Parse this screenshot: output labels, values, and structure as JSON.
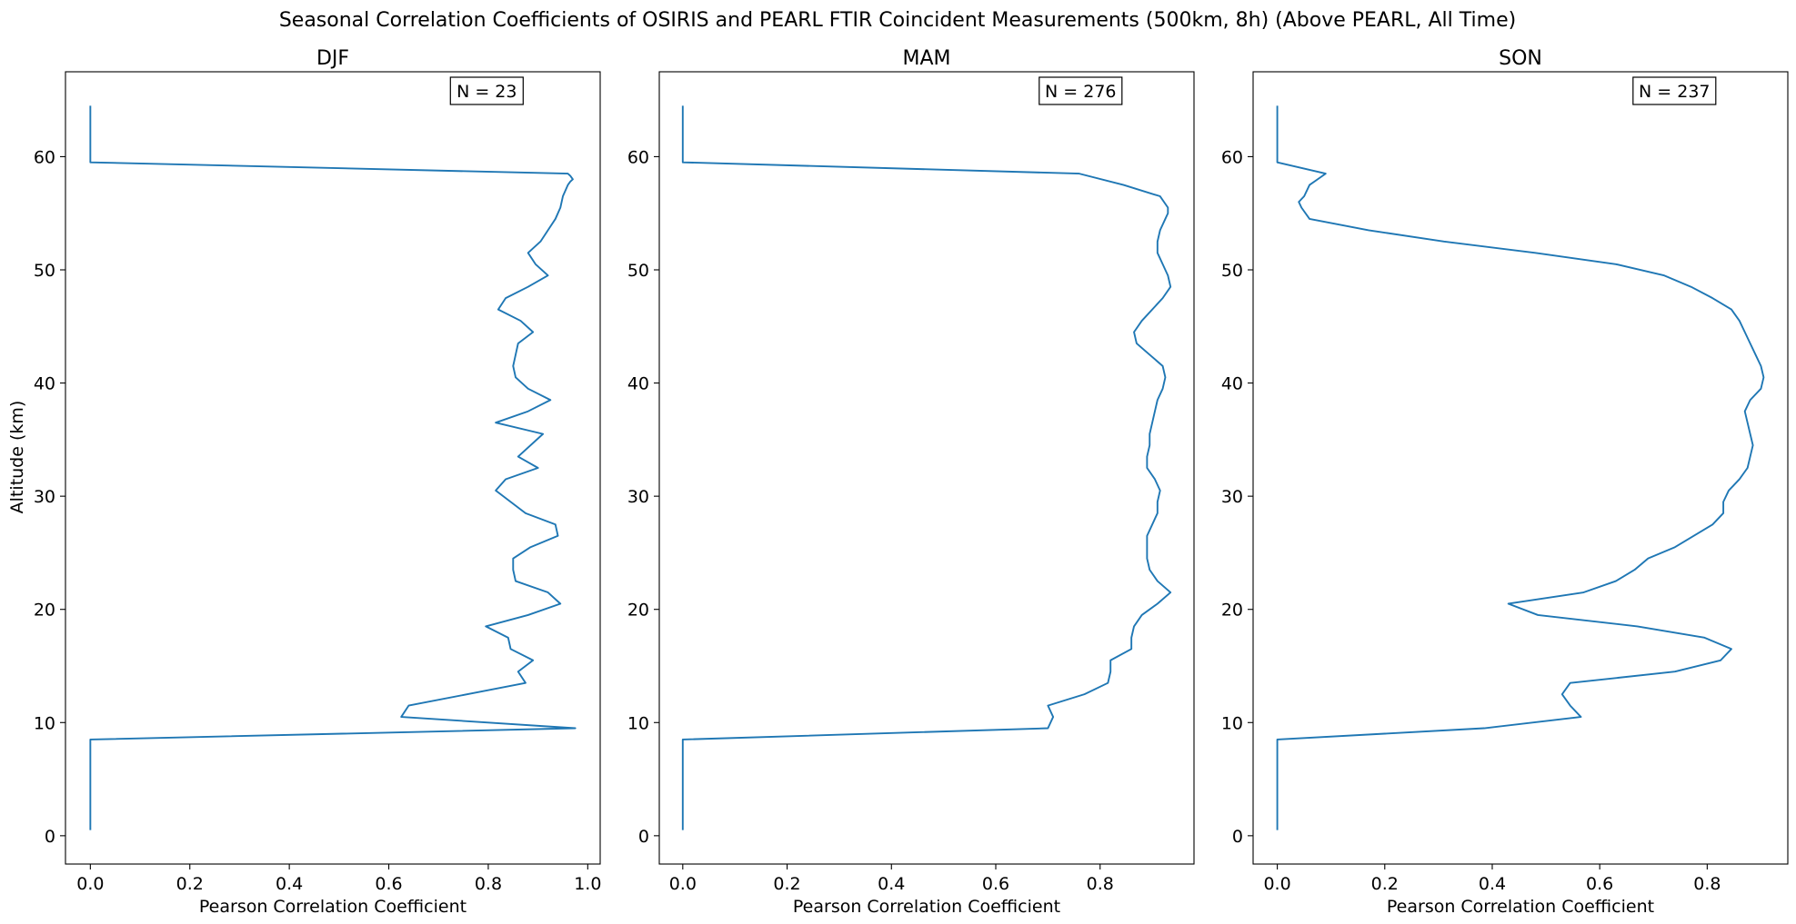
{
  "suptitle": "Seasonal Correlation Coefficients of OSIRIS and PEARL FTIR Coincident Measurements (500km, 8h) (Above PEARL, All Time)",
  "colors": {
    "line": "#1f77b4",
    "axes": "#000000",
    "background": "#ffffff"
  },
  "chart_data": [
    {
      "type": "line",
      "title": "DJF",
      "annotation": "N = 23",
      "xlabel": "Pearson Correlation Coefficient",
      "ylabel": "Altitude (km)",
      "xlim": [
        -0.05,
        1.025
      ],
      "ylim": [
        -2.5,
        67.5
      ],
      "xticks": [
        0.0,
        0.2,
        0.4,
        0.6,
        0.8,
        1.0
      ],
      "xticklabels": [
        "0.0",
        "0.2",
        "0.4",
        "0.6",
        "0.8",
        "1.0"
      ],
      "yticks": [
        0,
        10,
        20,
        30,
        40,
        50,
        60
      ],
      "yticklabels": [
        "0",
        "10",
        "20",
        "30",
        "40",
        "50",
        "60"
      ],
      "grid": false,
      "series": [
        {
          "x": [
            0,
            0,
            0,
            0,
            0,
            0,
            0,
            0,
            0,
            0.975,
            0.625,
            0.64,
            0.875,
            0.86,
            0.89,
            0.845,
            0.84,
            0.795,
            0.88,
            0.945,
            0.92,
            0.855,
            0.85,
            0.85,
            0.885,
            0.94,
            0.935,
            0.875,
            0.815,
            0.835,
            0.9,
            0.86,
            0.91,
            0.815,
            0.88,
            0.925,
            0.88,
            0.855,
            0.85,
            0.855,
            0.86,
            0.89,
            0.865,
            0.82,
            0.835,
            0.88,
            0.92,
            0.895,
            0.88,
            0.905,
            0.92,
            0.935,
            0.945,
            0.95,
            0.96,
            0.965,
            0.97,
            0.965,
            0.96,
            0,
            0,
            0,
            0,
            0,
            0
          ],
          "y": [
            0.5,
            1.5,
            2.5,
            3.5,
            4.5,
            5.5,
            6.5,
            7.5,
            8.5,
            9.5,
            10.5,
            11.5,
            13.5,
            14.5,
            15.5,
            16.5,
            17.5,
            18.5,
            19.5,
            20.5,
            21.5,
            22.5,
            23.5,
            24.5,
            25.5,
            26.5,
            27.5,
            28.5,
            30.5,
            31.5,
            32.5,
            33.5,
            35.5,
            36.5,
            37.5,
            38.5,
            39.5,
            40.5,
            41.5,
            42.5,
            43.5,
            44.5,
            45.5,
            46.5,
            47.5,
            48.5,
            49.5,
            50.5,
            51.5,
            52.5,
            53.5,
            54.5,
            55.5,
            56.5,
            57.5,
            57.8,
            58.0,
            58.3,
            58.5,
            59.5,
            60.5,
            61.5,
            62.5,
            63.5,
            64.5
          ]
        }
      ]
    },
    {
      "type": "line",
      "title": "MAM",
      "annotation": "N = 276",
      "xlabel": "Pearson Correlation Coefficient",
      "ylabel": "",
      "xlim": [
        -0.045,
        0.98
      ],
      "ylim": [
        -2.5,
        67.5
      ],
      "xticks": [
        0.0,
        0.2,
        0.4,
        0.6,
        0.8
      ],
      "xticklabels": [
        "0.0",
        "0.2",
        "0.4",
        "0.6",
        "0.8"
      ],
      "yticks": [
        0,
        10,
        20,
        30,
        40,
        50,
        60
      ],
      "yticklabels": [
        "0",
        "10",
        "20",
        "30",
        "40",
        "50",
        "60"
      ],
      "grid": false,
      "series": [
        {
          "x": [
            0,
            0,
            0,
            0,
            0,
            0,
            0,
            0,
            0,
            0.7,
            0.71,
            0.7,
            0.77,
            0.815,
            0.82,
            0.82,
            0.86,
            0.86,
            0.865,
            0.88,
            0.91,
            0.935,
            0.91,
            0.895,
            0.89,
            0.89,
            0.89,
            0.9,
            0.91,
            0.91,
            0.915,
            0.905,
            0.89,
            0.89,
            0.895,
            0.895,
            0.9,
            0.905,
            0.91,
            0.92,
            0.925,
            0.92,
            0.895,
            0.87,
            0.865,
            0.88,
            0.9,
            0.92,
            0.935,
            0.93,
            0.92,
            0.91,
            0.91,
            0.915,
            0.925,
            0.93,
            0.93,
            0.915,
            0.845,
            0.76,
            0,
            0,
            0,
            0,
            0,
            0
          ],
          "y": [
            0.5,
            1.5,
            2.5,
            3.5,
            4.5,
            5.5,
            6.5,
            7.5,
            8.5,
            9.5,
            10.5,
            11.5,
            12.5,
            13.5,
            14.5,
            15.5,
            16.5,
            17.5,
            18.5,
            19.5,
            20.5,
            21.5,
            22.5,
            23.5,
            24.5,
            25.5,
            26.5,
            27.5,
            28.5,
            29.5,
            30.5,
            31.5,
            32.5,
            33.5,
            34.5,
            35.5,
            36.5,
            37.5,
            38.5,
            39.5,
            40.5,
            41.5,
            42.5,
            43.5,
            44.5,
            45.5,
            46.5,
            47.5,
            48.5,
            49.5,
            50.5,
            51.5,
            52.5,
            53.5,
            54.5,
            55.0,
            55.5,
            56.5,
            57.5,
            58.5,
            59.5,
            60.5,
            61.5,
            62.5,
            63.5,
            64.5
          ]
        }
      ]
    },
    {
      "type": "line",
      "title": "SON",
      "annotation": "N = 237",
      "xlabel": "Pearson Correlation Coefficient",
      "ylabel": "",
      "xlim": [
        -0.045,
        0.95
      ],
      "ylim": [
        -2.5,
        67.5
      ],
      "xticks": [
        0.0,
        0.2,
        0.4,
        0.6,
        0.8
      ],
      "xticklabels": [
        "0.0",
        "0.2",
        "0.4",
        "0.6",
        "0.8"
      ],
      "yticks": [
        0,
        10,
        20,
        30,
        40,
        50,
        60
      ],
      "yticklabels": [
        "0",
        "10",
        "20",
        "30",
        "40",
        "50",
        "60"
      ],
      "grid": false,
      "series": [
        {
          "x": [
            0,
            0,
            0,
            0,
            0,
            0,
            0,
            0,
            0,
            0.385,
            0.565,
            0.545,
            0.53,
            0.545,
            0.74,
            0.825,
            0.845,
            0.795,
            0.67,
            0.485,
            0.43,
            0.57,
            0.63,
            0.665,
            0.69,
            0.74,
            0.81,
            0.83,
            0.83,
            0.84,
            0.86,
            0.875,
            0.88,
            0.885,
            0.88,
            0.875,
            0.87,
            0.88,
            0.9,
            0.905,
            0.9,
            0.89,
            0.88,
            0.87,
            0.86,
            0.845,
            0.81,
            0.77,
            0.72,
            0.63,
            0.48,
            0.31,
            0.17,
            0.06,
            0.045,
            0.04,
            0.05,
            0.06,
            0.075,
            0.09,
            0,
            0,
            0,
            0,
            0,
            0
          ],
          "y": [
            0.5,
            1.5,
            2.5,
            3.5,
            4.5,
            5.5,
            6.5,
            7.5,
            8.5,
            9.5,
            10.5,
            11.5,
            12.5,
            13.5,
            14.5,
            15.5,
            16.5,
            17.5,
            18.5,
            19.5,
            20.5,
            21.5,
            22.5,
            23.5,
            24.5,
            25.5,
            27.5,
            28.5,
            29.5,
            30.5,
            31.5,
            32.5,
            33.5,
            34.5,
            35.5,
            36.5,
            37.5,
            38.5,
            39.5,
            40.5,
            41.5,
            42.5,
            43.5,
            44.5,
            45.5,
            46.5,
            47.5,
            48.5,
            49.5,
            50.5,
            51.5,
            52.5,
            53.5,
            54.5,
            55.5,
            56.0,
            56.5,
            57.5,
            58.0,
            58.5,
            59.5,
            60.5,
            61.5,
            62.5,
            63.5,
            64.5
          ]
        }
      ]
    }
  ]
}
